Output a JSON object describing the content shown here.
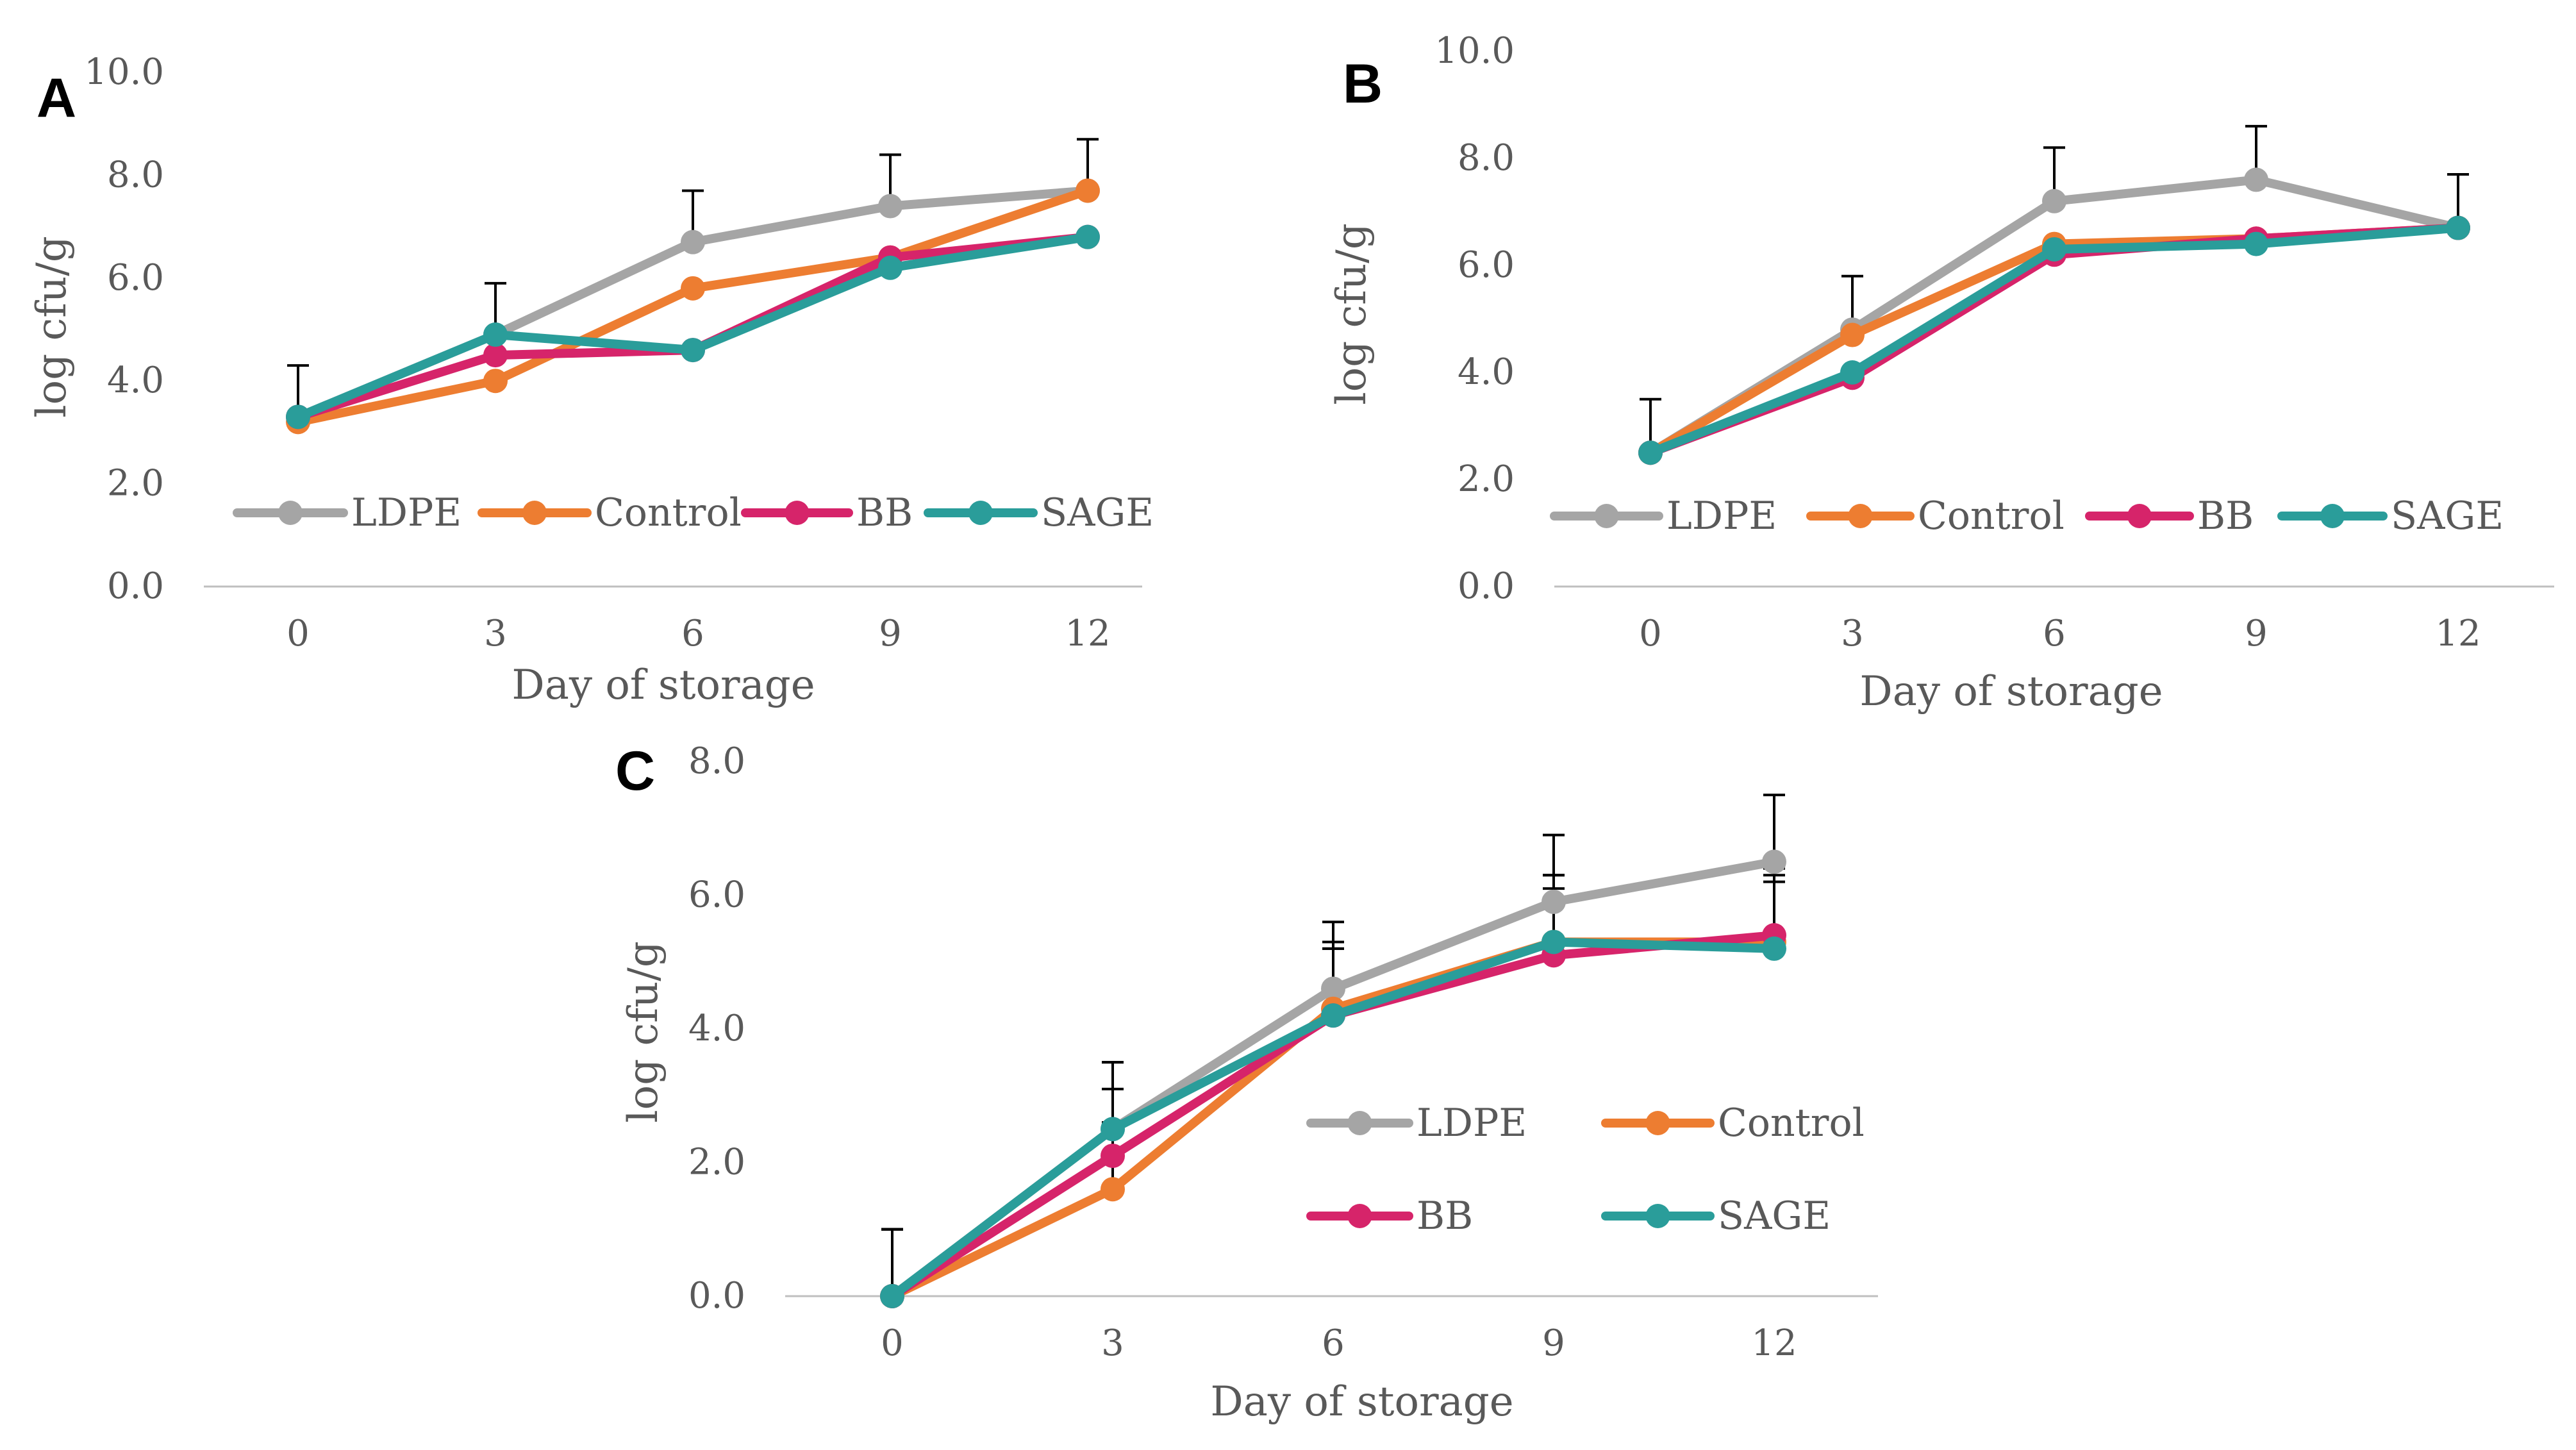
{
  "figure": {
    "colors": {
      "LDPE": "#A5A5A5",
      "Control": "#ED7D31",
      "BB": "#D6246A",
      "SAGE": "#2A9D9A",
      "axis": "#BFBFBF",
      "text": "#595959",
      "errorbar": "#000000"
    }
  },
  "chart_data": [
    {
      "panel": "A",
      "type": "line",
      "xlabel": "Day of storage",
      "ylabel": "log cfu/g",
      "categories": [
        "0",
        "3",
        "6",
        "9",
        "12"
      ],
      "ylim": [
        0,
        10
      ],
      "yticks": [
        "0.0",
        "2.0",
        "4.0",
        "6.0",
        "8.0",
        "10.0"
      ],
      "legend": "inside-lower, single row",
      "series": [
        {
          "name": "LDPE",
          "values": [
            3.3,
            4.9,
            6.7,
            7.4,
            7.7
          ],
          "error": [
            1.0,
            1.0,
            1.0,
            1.0,
            1.0
          ]
        },
        {
          "name": "Control",
          "values": [
            3.2,
            4.0,
            5.8,
            6.4,
            7.7
          ]
        },
        {
          "name": "BB",
          "values": [
            3.3,
            4.5,
            4.6,
            6.4,
            6.8
          ]
        },
        {
          "name": "SAGE",
          "values": [
            3.3,
            4.9,
            4.6,
            6.2,
            6.8
          ]
        }
      ]
    },
    {
      "panel": "B",
      "type": "line",
      "xlabel": "Day of storage",
      "ylabel": "log cfu/g",
      "categories": [
        "0",
        "3",
        "6",
        "9",
        "12"
      ],
      "ylim": [
        0,
        10
      ],
      "yticks": [
        "0.0",
        "2.0",
        "4.0",
        "6.0",
        "8.0",
        "10.0"
      ],
      "legend": "inside-lower, single row",
      "series": [
        {
          "name": "LDPE",
          "values": [
            2.5,
            4.8,
            7.2,
            7.6,
            6.7
          ],
          "error": [
            1.0,
            1.0,
            1.0,
            1.0,
            1.0
          ]
        },
        {
          "name": "Control",
          "values": [
            2.5,
            4.7,
            6.4,
            6.5,
            6.7
          ]
        },
        {
          "name": "BB",
          "values": [
            2.5,
            3.9,
            6.2,
            6.5,
            6.7
          ]
        },
        {
          "name": "SAGE",
          "values": [
            2.5,
            4.0,
            6.3,
            6.4,
            6.7
          ]
        }
      ]
    },
    {
      "panel": "C",
      "type": "line",
      "xlabel": "Day of storage",
      "ylabel": "log cfu/g",
      "categories": [
        "0",
        "3",
        "6",
        "9",
        "12"
      ],
      "ylim": [
        0,
        8
      ],
      "yticks": [
        "0.0",
        "2.0",
        "4.0",
        "6.0",
        "8.0"
      ],
      "legend": "inside-lower-right, 2x2 grid",
      "series": [
        {
          "name": "LDPE",
          "values": [
            0.0,
            2.5,
            4.6,
            5.9,
            6.5
          ],
          "error": [
            1.0,
            1.0,
            1.0,
            1.0,
            1.0
          ]
        },
        {
          "name": "Control",
          "values": [
            0.0,
            1.6,
            4.3,
            5.3,
            5.3
          ],
          "error": [
            1.0,
            1.0,
            1.0,
            1.0,
            1.0
          ]
        },
        {
          "name": "BB",
          "values": [
            0.0,
            2.1,
            4.2,
            5.1,
            5.4
          ],
          "error": [
            1.0,
            1.0,
            1.0,
            1.0,
            1.0
          ]
        },
        {
          "name": "SAGE",
          "values": [
            0.0,
            2.5,
            4.2,
            5.3,
            5.2
          ],
          "error": [
            1.0,
            1.0,
            1.0,
            1.0,
            1.0
          ]
        }
      ]
    }
  ]
}
